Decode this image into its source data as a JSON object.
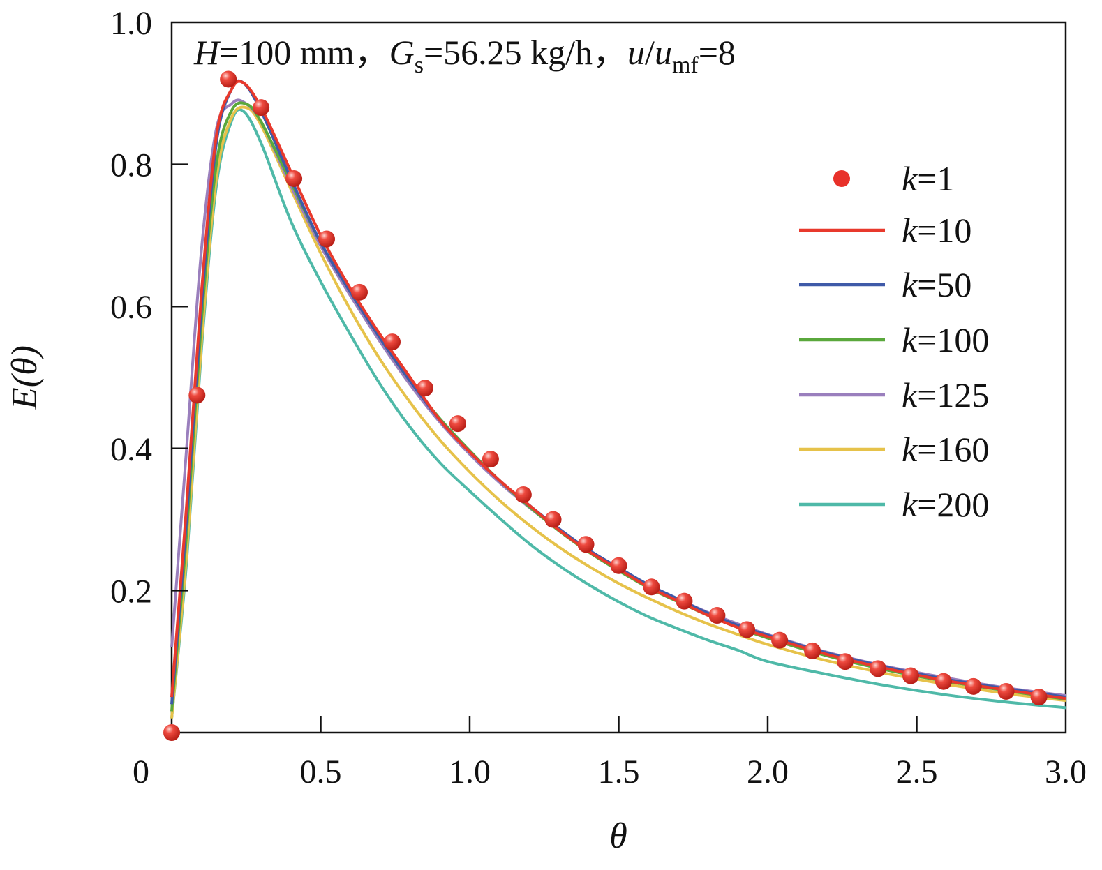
{
  "chart_data": {
    "type": "line",
    "annotation": {
      "H_symbol": "H",
      "H_value": "=100 mm，",
      "G_symbol": "G",
      "G_sub": "s",
      "G_value": "=56.25 kg/h，",
      "u_symbol": "u",
      "slash": "/",
      "umf_symbol": "u",
      "umf_sub": "mf",
      "u_value": "=8"
    },
    "xlabel": "θ",
    "ylabel": "E(θ)",
    "xlim": [
      0,
      3.0
    ],
    "ylim": [
      0,
      1.0
    ],
    "xticks": [
      {
        "value": 0,
        "label": "0"
      },
      {
        "value": 0.5,
        "label": "0.5"
      },
      {
        "value": 1.0,
        "label": "1.0"
      },
      {
        "value": 1.5,
        "label": "1.5"
      },
      {
        "value": 2.0,
        "label": "2.0"
      },
      {
        "value": 2.5,
        "label": "2.5"
      },
      {
        "value": 3.0,
        "label": "3.0"
      }
    ],
    "yticks": [
      {
        "value": 0.2,
        "label": "0.2"
      },
      {
        "value": 0.4,
        "label": "0.4"
      },
      {
        "value": 0.6,
        "label": "0.6"
      },
      {
        "value": 0.8,
        "label": "0.8"
      },
      {
        "value": 1.0,
        "label": "1.0"
      }
    ],
    "grid": false,
    "legend_position": "right",
    "series": [
      {
        "name": "k=1",
        "name_k": "k",
        "name_value": "=1",
        "style": "markers",
        "color": "#e8312a",
        "x": [
          0.0,
          0.085,
          0.19,
          0.3,
          0.41,
          0.52,
          0.63,
          0.74,
          0.85,
          0.96,
          1.07,
          1.18,
          1.28,
          1.39,
          1.5,
          1.61,
          1.72,
          1.83,
          1.93,
          2.04,
          2.15,
          2.26,
          2.37,
          2.48,
          2.59,
          2.69,
          2.8,
          2.91
        ],
        "y": [
          0.0,
          0.475,
          0.92,
          0.88,
          0.78,
          0.695,
          0.62,
          0.55,
          0.485,
          0.435,
          0.385,
          0.335,
          0.3,
          0.265,
          0.235,
          0.205,
          0.185,
          0.165,
          0.145,
          0.13,
          0.115,
          0.1,
          0.09,
          0.08,
          0.072,
          0.065,
          0.058,
          0.05
        ]
      },
      {
        "name": "k=10",
        "name_k": "k",
        "name_value": "=10",
        "style": "line",
        "color": "#e8392c",
        "x": [
          0.0,
          0.05,
          0.1,
          0.15,
          0.2,
          0.24,
          0.3,
          0.4,
          0.5,
          0.6,
          0.7,
          0.8,
          0.9,
          1.0,
          1.1,
          1.2,
          1.3,
          1.4,
          1.5,
          1.6,
          1.7,
          1.8,
          1.9,
          2.0,
          2.2,
          2.4,
          2.6,
          2.8,
          3.0
        ],
        "y": [
          0.05,
          0.32,
          0.62,
          0.84,
          0.905,
          0.915,
          0.88,
          0.79,
          0.7,
          0.625,
          0.56,
          0.5,
          0.44,
          0.395,
          0.355,
          0.32,
          0.285,
          0.255,
          0.23,
          0.205,
          0.185,
          0.165,
          0.148,
          0.135,
          0.11,
          0.09,
          0.073,
          0.06,
          0.048
        ]
      },
      {
        "name": "k=50",
        "name_k": "k",
        "name_value": "=50",
        "style": "line",
        "color": "#3f5aa8",
        "x": [
          0.0,
          0.05,
          0.1,
          0.15,
          0.2,
          0.24,
          0.3,
          0.4,
          0.5,
          0.6,
          0.7,
          0.8,
          0.9,
          1.0,
          1.1,
          1.2,
          1.3,
          1.4,
          1.5,
          1.6,
          1.7,
          1.8,
          1.9,
          2.0,
          2.2,
          2.4,
          2.6,
          2.8,
          3.0
        ],
        "y": [
          0.04,
          0.3,
          0.6,
          0.83,
          0.905,
          0.915,
          0.875,
          0.78,
          0.69,
          0.62,
          0.555,
          0.495,
          0.44,
          0.395,
          0.355,
          0.32,
          0.287,
          0.257,
          0.232,
          0.208,
          0.188,
          0.168,
          0.151,
          0.137,
          0.112,
          0.092,
          0.075,
          0.062,
          0.05
        ]
      },
      {
        "name": "k=100",
        "name_k": "k",
        "name_value": "=100",
        "style": "line",
        "color": "#5aa83c",
        "x": [
          0.0,
          0.05,
          0.1,
          0.15,
          0.2,
          0.25,
          0.3,
          0.4,
          0.5,
          0.6,
          0.7,
          0.8,
          0.9,
          1.0,
          1.1,
          1.2,
          1.3,
          1.4,
          1.5,
          1.6,
          1.7,
          1.8,
          1.9,
          2.0,
          2.2,
          2.4,
          2.6,
          2.8,
          3.0
        ],
        "y": [
          0.03,
          0.28,
          0.58,
          0.8,
          0.875,
          0.885,
          0.86,
          0.775,
          0.69,
          0.62,
          0.555,
          0.495,
          0.442,
          0.397,
          0.355,
          0.318,
          0.284,
          0.254,
          0.228,
          0.204,
          0.184,
          0.165,
          0.148,
          0.133,
          0.108,
          0.088,
          0.072,
          0.059,
          0.047
        ]
      },
      {
        "name": "k=125",
        "name_k": "k",
        "name_value": "=125",
        "style": "line",
        "color": "#9a7fbd",
        "x": [
          0.0,
          0.05,
          0.1,
          0.15,
          0.2,
          0.24,
          0.3,
          0.4,
          0.5,
          0.6,
          0.7,
          0.8,
          0.9,
          1.0,
          1.1,
          1.2,
          1.3,
          1.4,
          1.5,
          1.6,
          1.7,
          1.8,
          1.9,
          2.0,
          2.2,
          2.4,
          2.6,
          2.8,
          3.0
        ],
        "y": [
          0.12,
          0.4,
          0.68,
          0.85,
          0.885,
          0.888,
          0.86,
          0.77,
          0.685,
          0.615,
          0.55,
          0.49,
          0.437,
          0.392,
          0.352,
          0.317,
          0.285,
          0.256,
          0.231,
          0.208,
          0.188,
          0.169,
          0.153,
          0.138,
          0.113,
          0.093,
          0.077,
          0.063,
          0.052
        ]
      },
      {
        "name": "k=160",
        "name_k": "k",
        "name_value": "=160",
        "style": "line",
        "color": "#e6c24a",
        "x": [
          0.0,
          0.05,
          0.1,
          0.15,
          0.2,
          0.25,
          0.3,
          0.4,
          0.5,
          0.6,
          0.7,
          0.8,
          0.9,
          1.0,
          1.1,
          1.2,
          1.3,
          1.4,
          1.5,
          1.6,
          1.7,
          1.8,
          1.9,
          2.0,
          2.2,
          2.4,
          2.6,
          2.8,
          3.0
        ],
        "y": [
          0.02,
          0.25,
          0.55,
          0.78,
          0.865,
          0.88,
          0.855,
          0.765,
          0.675,
          0.595,
          0.525,
          0.465,
          0.412,
          0.367,
          0.327,
          0.292,
          0.261,
          0.234,
          0.21,
          0.189,
          0.17,
          0.153,
          0.138,
          0.124,
          0.101,
          0.083,
          0.068,
          0.055,
          0.045
        ]
      },
      {
        "name": "k=200",
        "name_k": "k",
        "name_value": "=200",
        "style": "line",
        "color": "#4fb9a8",
        "x": [
          0.0,
          0.05,
          0.1,
          0.15,
          0.2,
          0.24,
          0.3,
          0.4,
          0.5,
          0.6,
          0.7,
          0.8,
          0.9,
          1.0,
          1.1,
          1.2,
          1.3,
          1.4,
          1.5,
          1.6,
          1.7,
          1.8,
          1.9,
          2.0,
          2.2,
          2.4,
          2.6,
          2.8,
          3.0
        ],
        "y": [
          0.02,
          0.24,
          0.54,
          0.77,
          0.86,
          0.875,
          0.83,
          0.72,
          0.635,
          0.56,
          0.49,
          0.43,
          0.38,
          0.34,
          0.302,
          0.266,
          0.235,
          0.208,
          0.184,
          0.163,
          0.146,
          0.13,
          0.116,
          0.1,
          0.082,
          0.066,
          0.053,
          0.043,
          0.035
        ]
      }
    ]
  }
}
